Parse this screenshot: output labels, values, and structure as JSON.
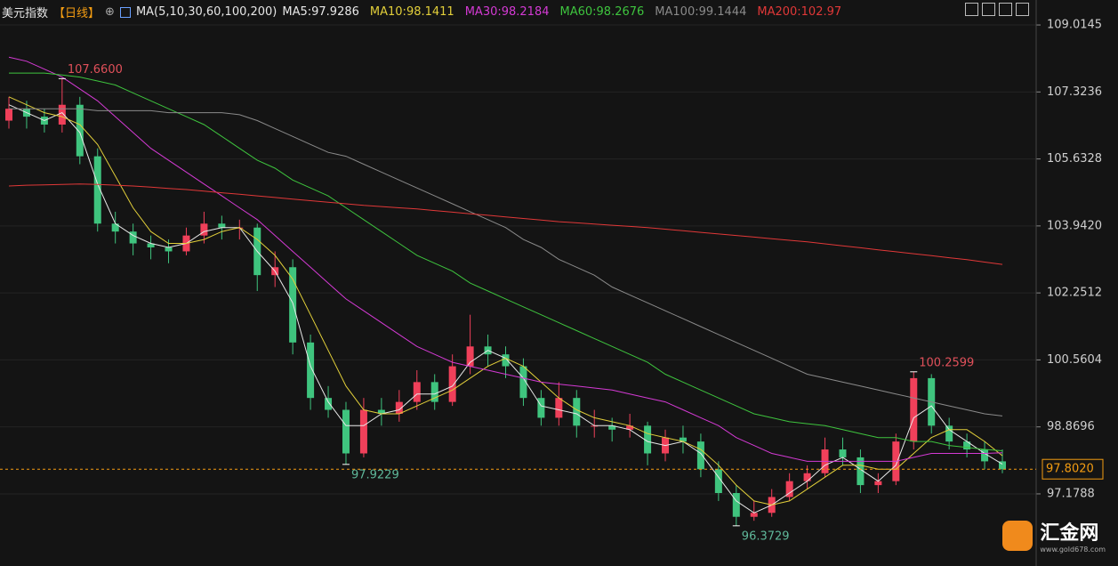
{
  "chart_data": {
    "type": "candlestick",
    "title": "美元指数",
    "period": "【日线】",
    "ma_label": "MA(5,10,30,60,100,200)",
    "ylim": [
      95.83,
      109.42
    ],
    "yticks": [
      109.0145,
      107.3236,
      105.6328,
      {
        "value": 103.942,
        "label": "103.9420"
      },
      102.2512,
      100.5604,
      98.8696,
      97.1788
    ],
    "up_color": "#f0405a",
    "down_color": "#3fc47e",
    "open": [
      106.6,
      106.9,
      106.7,
      106.5,
      107.0,
      105.7,
      104.0,
      103.8,
      103.5,
      103.4,
      103.3,
      103.7,
      104.0,
      103.9,
      103.9,
      102.7,
      102.9,
      101.0,
      99.6,
      99.3,
      98.2,
      99.3,
      99.2,
      99.5,
      100.0,
      99.5,
      100.4,
      100.9,
      100.7,
      100.4,
      99.6,
      99.1,
      99.6,
      98.9,
      98.9,
      98.8,
      98.9,
      98.2,
      98.6,
      98.5,
      97.8,
      97.2,
      96.6,
      96.7,
      97.1,
      97.5,
      97.7,
      98.3,
      98.1,
      97.4,
      97.5,
      98.5,
      100.1,
      98.9,
      98.5,
      98.3,
      98.0
    ],
    "high": [
      107.2,
      107.1,
      106.9,
      107.66,
      107.2,
      105.9,
      104.3,
      104.0,
      103.7,
      103.6,
      103.9,
      104.3,
      104.2,
      104.1,
      104.0,
      103.3,
      103.1,
      101.2,
      99.9,
      99.5,
      99.6,
      99.6,
      99.8,
      100.3,
      100.2,
      100.7,
      101.7,
      101.2,
      100.9,
      100.6,
      99.8,
      100.0,
      99.8,
      99.3,
      99.1,
      99.2,
      99.0,
      98.8,
      98.9,
      98.7,
      98.0,
      97.4,
      97.0,
      97.3,
      97.7,
      97.9,
      98.6,
      98.6,
      98.3,
      97.7,
      98.7,
      100.2599,
      100.2,
      99.1,
      98.7,
      98.5,
      98.3
    ],
    "low": [
      106.4,
      106.4,
      106.3,
      106.3,
      105.5,
      103.8,
      103.5,
      103.2,
      103.1,
      103.0,
      103.2,
      103.5,
      103.6,
      103.6,
      102.3,
      102.4,
      100.7,
      99.3,
      99.1,
      97.9229,
      98.1,
      98.9,
      99.0,
      99.3,
      99.3,
      99.4,
      100.2,
      100.4,
      100.1,
      99.4,
      98.9,
      98.9,
      98.6,
      98.6,
      98.5,
      98.6,
      97.9,
      98.0,
      98.2,
      97.6,
      97.0,
      96.3729,
      96.5,
      96.6,
      97.0,
      97.3,
      97.6,
      97.9,
      97.2,
      97.2,
      97.4,
      98.3,
      98.7,
      98.3,
      98.1,
      97.8,
      97.7
    ],
    "close": [
      106.9,
      106.7,
      106.5,
      107.0,
      105.7,
      104.0,
      103.8,
      103.5,
      103.4,
      103.3,
      103.7,
      104.0,
      103.9,
      103.9,
      102.7,
      102.9,
      101.0,
      99.6,
      99.3,
      98.2,
      99.3,
      99.2,
      99.5,
      100.0,
      99.5,
      100.4,
      100.9,
      100.7,
      100.4,
      99.6,
      99.1,
      99.6,
      98.9,
      98.9,
      98.8,
      98.9,
      98.2,
      98.6,
      98.5,
      97.8,
      97.2,
      96.6,
      96.7,
      97.1,
      97.5,
      97.7,
      98.3,
      98.1,
      97.4,
      97.5,
      98.5,
      100.1,
      98.9,
      98.5,
      98.3,
      98.0,
      97.8
    ],
    "series": [
      {
        "name": "MA5:97.9286",
        "color": "#e8e8e8",
        "values": [
          107.0,
          106.8,
          106.6,
          106.8,
          106.3,
          105.0,
          104.0,
          103.7,
          103.5,
          103.4,
          103.5,
          103.8,
          103.9,
          103.9,
          103.3,
          102.8,
          102.0,
          100.4,
          99.5,
          98.9,
          98.9,
          99.2,
          99.3,
          99.7,
          99.7,
          99.9,
          100.5,
          100.8,
          100.6,
          100.1,
          99.4,
          99.3,
          99.2,
          98.9,
          98.9,
          98.8,
          98.5,
          98.4,
          98.5,
          98.2,
          97.6,
          97.0,
          96.7,
          96.9,
          97.2,
          97.5,
          97.9,
          98.1,
          97.8,
          97.5,
          97.9,
          99.1,
          99.4,
          98.8,
          98.5,
          98.2,
          97.9286
        ]
      },
      {
        "name": "MA10:98.1411",
        "color": "#e2cf3a",
        "values": [
          107.2,
          107.0,
          106.8,
          106.7,
          106.5,
          106.0,
          105.2,
          104.4,
          103.8,
          103.5,
          103.5,
          103.6,
          103.8,
          103.9,
          103.6,
          103.2,
          102.6,
          101.7,
          100.8,
          99.9,
          99.3,
          99.2,
          99.2,
          99.4,
          99.6,
          99.8,
          100.1,
          100.4,
          100.6,
          100.4,
          100.0,
          99.6,
          99.3,
          99.1,
          99.0,
          98.9,
          98.7,
          98.6,
          98.5,
          98.3,
          97.9,
          97.4,
          97.0,
          96.9,
          97.0,
          97.3,
          97.6,
          97.9,
          97.9,
          97.8,
          97.8,
          98.2,
          98.6,
          98.8,
          98.8,
          98.5,
          98.1411
        ]
      },
      {
        "name": "MA30:98.2184",
        "color": "#d43ad4",
        "values": [
          108.2,
          108.1,
          107.9,
          107.7,
          107.4,
          107.1,
          106.7,
          106.3,
          105.9,
          105.6,
          105.3,
          105.0,
          104.7,
          104.4,
          104.1,
          103.7,
          103.3,
          102.9,
          102.5,
          102.1,
          101.8,
          101.5,
          101.2,
          100.9,
          100.7,
          100.5,
          100.4,
          100.3,
          100.2,
          100.1,
          100.0,
          99.95,
          99.9,
          99.85,
          99.8,
          99.7,
          99.6,
          99.5,
          99.3,
          99.1,
          98.9,
          98.6,
          98.4,
          98.2,
          98.1,
          98.0,
          98.0,
          98.0,
          98.0,
          98.0,
          98.0,
          98.1,
          98.2,
          98.2,
          98.2,
          98.2,
          98.2184
        ]
      },
      {
        "name": "MA60:98.2676",
        "color": "#3ec43e",
        "values": [
          107.8,
          107.8,
          107.8,
          107.75,
          107.7,
          107.6,
          107.5,
          107.3,
          107.1,
          106.9,
          106.7,
          106.5,
          106.2,
          105.9,
          105.6,
          105.4,
          105.1,
          104.9,
          104.7,
          104.4,
          104.1,
          103.8,
          103.5,
          103.2,
          103.0,
          102.8,
          102.5,
          102.3,
          102.1,
          101.9,
          101.7,
          101.5,
          101.3,
          101.1,
          100.9,
          100.7,
          100.5,
          100.2,
          100.0,
          99.8,
          99.6,
          99.4,
          99.2,
          99.1,
          99.0,
          98.95,
          98.9,
          98.8,
          98.7,
          98.6,
          98.6,
          98.5,
          98.5,
          98.4,
          98.35,
          98.3,
          98.2676
        ]
      },
      {
        "name": "MA100:99.1444",
        "color": "#8a8a8a",
        "values": [
          106.9,
          106.9,
          106.9,
          106.9,
          106.9,
          106.85,
          106.85,
          106.85,
          106.85,
          106.8,
          106.8,
          106.8,
          106.8,
          106.75,
          106.6,
          106.4,
          106.2,
          106.0,
          105.8,
          105.7,
          105.5,
          105.3,
          105.1,
          104.9,
          104.7,
          104.5,
          104.3,
          104.1,
          103.9,
          103.6,
          103.4,
          103.1,
          102.9,
          102.7,
          102.4,
          102.2,
          102.0,
          101.8,
          101.6,
          101.4,
          101.2,
          101.0,
          100.8,
          100.6,
          100.4,
          100.2,
          100.1,
          100.0,
          99.9,
          99.8,
          99.7,
          99.6,
          99.5,
          99.4,
          99.3,
          99.2,
          99.1444
        ]
      },
      {
        "name": "MA200:102.97",
        "color": "#e03838",
        "values": [
          104.95,
          104.97,
          104.98,
          104.99,
          105.0,
          104.99,
          104.97,
          104.95,
          104.92,
          104.89,
          104.86,
          104.82,
          104.78,
          104.74,
          104.7,
          104.66,
          104.62,
          104.58,
          104.54,
          104.5,
          104.46,
          104.43,
          104.4,
          104.37,
          104.33,
          104.29,
          104.25,
          104.21,
          104.17,
          104.13,
          104.09,
          104.05,
          104.02,
          103.99,
          103.96,
          103.93,
          103.9,
          103.86,
          103.82,
          103.78,
          103.74,
          103.7,
          103.66,
          103.62,
          103.58,
          103.54,
          103.49,
          103.44,
          103.39,
          103.34,
          103.29,
          103.24,
          103.19,
          103.14,
          103.09,
          103.03,
          102.97
        ]
      }
    ],
    "current_price": {
      "value": 97.802,
      "label": "97.8020"
    },
    "annotations": [
      {
        "value": 107.66,
        "label": "107.6600"
      },
      {
        "value": 97.9229,
        "label": "97.9229"
      },
      {
        "value": 96.3729,
        "label": "96.3729"
      },
      {
        "value": 100.2599,
        "label": "100.2599"
      }
    ]
  },
  "watermark": {
    "name": "汇金网",
    "url": "www.gold678.com"
  }
}
